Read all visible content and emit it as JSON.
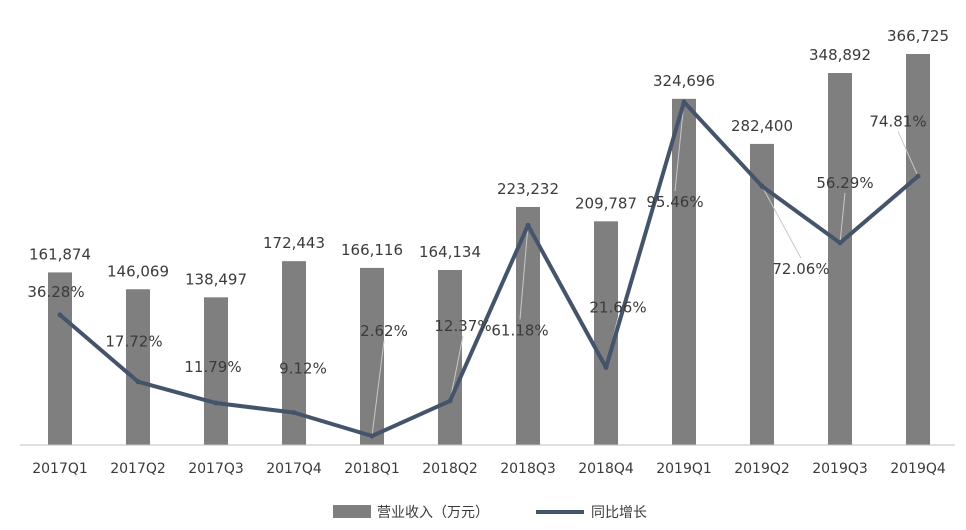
{
  "chart_data": {
    "type": "bar",
    "categories": [
      "2017Q1",
      "2017Q2",
      "2017Q3",
      "2017Q4",
      "2018Q1",
      "2018Q2",
      "2018Q3",
      "2018Q4",
      "2019Q1",
      "2019Q2",
      "2019Q3",
      "2019Q4"
    ],
    "series": [
      {
        "name": "营业收入（万元）",
        "type": "bar",
        "values": [
          161874,
          146069,
          138497,
          172443,
          166116,
          164134,
          223232,
          209787,
          324696,
          282400,
          348892,
          366725
        ],
        "labels": [
          "161,874",
          "146,069",
          "138,497",
          "172,443",
          "166,116",
          "164,134",
          "223,232",
          "209,787",
          "324,696",
          "282,400",
          "348,892",
          "366,725"
        ],
        "color": "#7f7f7f"
      },
      {
        "name": "同比增长",
        "type": "line",
        "values": [
          36.28,
          17.72,
          11.79,
          9.12,
          2.62,
          12.37,
          61.18,
          21.66,
          95.46,
          72.06,
          56.29,
          74.81
        ],
        "labels": [
          "36.28%",
          "17.72%",
          "11.79%",
          "9.12%",
          "2.62%",
          "12.37%",
          "61.18%",
          "21.66%",
          "95.46%",
          "72.06%",
          "56.29%",
          "74.81%"
        ],
        "color": "#44546a"
      }
    ],
    "legend_position": "bottom",
    "grid": false
  }
}
